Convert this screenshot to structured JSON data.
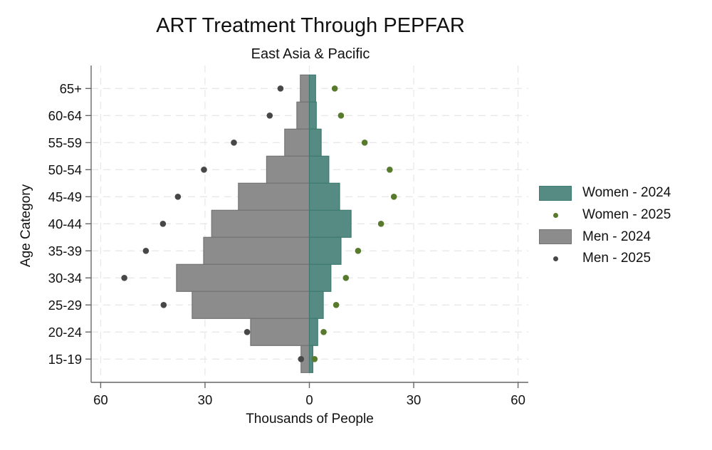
{
  "header": {
    "title": "ART Treatment Through PEPFAR",
    "subtitle": "East Asia & Pacific"
  },
  "axes": {
    "xlabel": "Thousands of People",
    "ylabel": "Age Category"
  },
  "legend": {
    "items": [
      {
        "label": "Women - 2024",
        "kind": "bar",
        "color": "#568b84",
        "border": "#3f7a70"
      },
      {
        "label": "Women - 2025",
        "kind": "dot",
        "color": "#587a2c"
      },
      {
        "label": "Men - 2024",
        "kind": "bar",
        "color": "#8c8c8c",
        "border": "#737373"
      },
      {
        "label": "Men - 2025",
        "kind": "dot",
        "color": "#474747"
      }
    ]
  },
  "chart_data": {
    "type": "bar",
    "subtype": "population-pyramid (horizontal bars, men plotted to the left, with 2025 overlay dots)",
    "title": "ART Treatment Through PEPFAR",
    "subtitle": "East Asia & Pacific",
    "xlabel": "Thousands of People",
    "ylabel": "Age Category",
    "xlim": [
      -60,
      60
    ],
    "x_ticks": [
      -60,
      -30,
      0,
      30,
      60
    ],
    "x_tick_labels": [
      "60",
      "30",
      "0",
      "30",
      "60"
    ],
    "grid": true,
    "legend_position": "right",
    "categories": [
      "65+",
      "60-64",
      "55-59",
      "50-54",
      "45-49",
      "40-44",
      "35-39",
      "30-34",
      "25-29",
      "20-24",
      "15-19"
    ],
    "series": [
      {
        "name": "Women - 2024",
        "type": "bar",
        "side": "right",
        "color": "#568b84",
        "values": [
          1.8,
          2.0,
          3.4,
          5.6,
          8.7,
          12.0,
          9.1,
          6.2,
          4.0,
          2.4,
          1.0
        ]
      },
      {
        "name": "Women - 2025",
        "type": "scatter",
        "side": "right",
        "color": "#587a2c",
        "values": [
          7.3,
          9.1,
          15.9,
          23.1,
          24.3,
          20.6,
          14.0,
          10.5,
          7.7,
          4.1,
          1.5
        ]
      },
      {
        "name": "Men - 2024",
        "type": "bar",
        "side": "left",
        "color": "#8c8c8c",
        "values": [
          2.6,
          3.6,
          7.1,
          12.3,
          20.4,
          28.1,
          30.4,
          38.2,
          33.7,
          16.9,
          2.4
        ]
      },
      {
        "name": "Men - 2025",
        "type": "scatter",
        "side": "left",
        "color": "#474747",
        "values": [
          8.3,
          11.4,
          21.7,
          30.3,
          37.8,
          42.1,
          47.0,
          53.2,
          41.9,
          17.9,
          2.4
        ]
      }
    ]
  }
}
